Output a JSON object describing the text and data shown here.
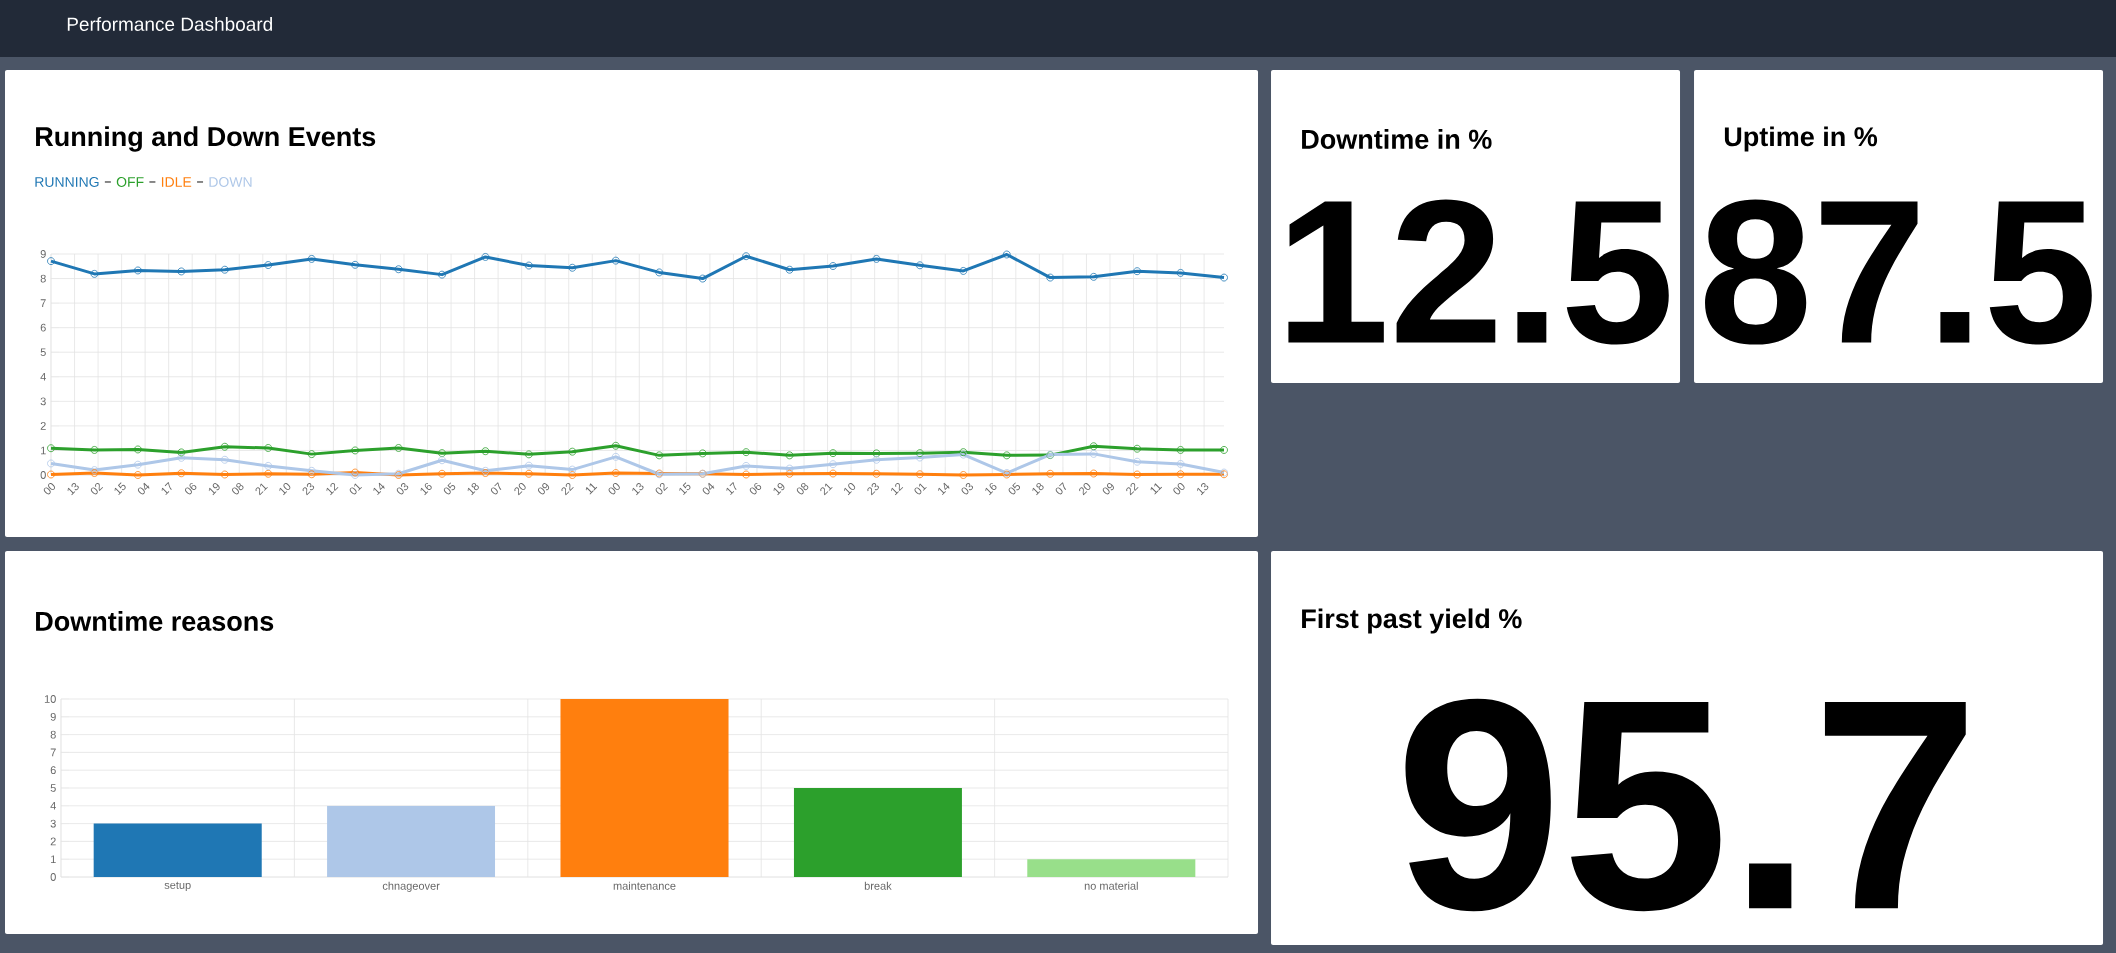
{
  "chart_data": [
    {
      "type": "other",
      "title": "Performance Dashboard"
    },
    {
      "type": "line",
      "title": "Running and Down Events",
      "marker": "circle",
      "grid": true,
      "legend": "top left",
      "x": [
        0,
        24,
        48,
        72,
        96,
        120,
        144,
        168,
        192,
        216,
        240,
        264,
        288,
        312,
        336,
        360,
        384,
        408,
        432,
        456,
        480,
        504,
        528,
        552,
        576,
        600,
        624,
        648
      ],
      "xlim": [
        0,
        648
      ],
      "ylim": [
        0,
        9
      ],
      "yticks": [
        0,
        1,
        2,
        3,
        4,
        5,
        6,
        7,
        8,
        9
      ],
      "xticks": [
        {
          "value": 0,
          "label": "00"
        },
        {
          "value": 13,
          "label": "13"
        },
        {
          "value": 26,
          "label": "02"
        },
        {
          "value": 39,
          "label": "15"
        },
        {
          "value": 52,
          "label": "04"
        },
        {
          "value": 65,
          "label": "17"
        },
        {
          "value": 78,
          "label": "06"
        },
        {
          "value": 91,
          "label": "19"
        },
        {
          "value": 104,
          "label": "08"
        },
        {
          "value": 117,
          "label": "21"
        },
        {
          "value": 130,
          "label": "10"
        },
        {
          "value": 143,
          "label": "23"
        },
        {
          "value": 156,
          "label": "12"
        },
        {
          "value": 169,
          "label": "01"
        },
        {
          "value": 182,
          "label": "14"
        },
        {
          "value": 195,
          "label": "03"
        },
        {
          "value": 208,
          "label": "16"
        },
        {
          "value": 221,
          "label": "05"
        },
        {
          "value": 234,
          "label": "18"
        },
        {
          "value": 247,
          "label": "07"
        },
        {
          "value": 260,
          "label": "20"
        },
        {
          "value": 273,
          "label": "09"
        },
        {
          "value": 286,
          "label": "22"
        },
        {
          "value": 299,
          "label": "11"
        },
        {
          "value": 312,
          "label": "00"
        },
        {
          "value": 325,
          "label": "13"
        },
        {
          "value": 338,
          "label": "02"
        },
        {
          "value": 351,
          "label": "15"
        },
        {
          "value": 364,
          "label": "04"
        },
        {
          "value": 377,
          "label": "17"
        },
        {
          "value": 390,
          "label": "06"
        },
        {
          "value": 403,
          "label": "19"
        },
        {
          "value": 416,
          "label": "08"
        },
        {
          "value": 429,
          "label": "21"
        },
        {
          "value": 442,
          "label": "10"
        },
        {
          "value": 455,
          "label": "23"
        },
        {
          "value": 468,
          "label": "12"
        },
        {
          "value": 481,
          "label": "01"
        },
        {
          "value": 494,
          "label": "14"
        },
        {
          "value": 507,
          "label": "03"
        },
        {
          "value": 520,
          "label": "16"
        },
        {
          "value": 533,
          "label": "05"
        },
        {
          "value": 546,
          "label": "18"
        },
        {
          "value": 559,
          "label": "07"
        },
        {
          "value": 572,
          "label": "20"
        },
        {
          "value": 585,
          "label": "09"
        },
        {
          "value": 598,
          "label": "22"
        },
        {
          "value": 611,
          "label": "11"
        },
        {
          "value": 624,
          "label": "00"
        },
        {
          "value": 637,
          "label": "13"
        }
      ],
      "series": [
        {
          "name": "RUNNING",
          "color": "#1f77b4",
          "values": [
            8.71,
            8.19,
            8.33,
            8.29,
            8.36,
            8.55,
            8.8,
            8.56,
            8.38,
            8.16,
            8.88,
            8.53,
            8.44,
            8.73,
            8.25,
            8.0,
            8.91,
            8.36,
            8.51,
            8.8,
            8.54,
            8.31,
            8.98,
            8.04,
            8.07,
            8.3,
            8.23,
            8.04
          ]
        },
        {
          "name": "OFF",
          "color": "#2ca02c",
          "values": [
            1.09,
            1.02,
            1.04,
            0.92,
            1.15,
            1.1,
            0.85,
            1.0,
            1.1,
            0.89,
            0.97,
            0.84,
            0.95,
            1.19,
            0.8,
            0.88,
            0.93,
            0.8,
            0.89,
            0.88,
            0.89,
            0.93,
            0.8,
            0.81,
            1.17,
            1.07,
            1.02,
            1.02
          ]
        },
        {
          "name": "IDLE",
          "color": "#ff7f0e",
          "values": [
            0.02,
            0.08,
            0.0,
            0.07,
            0.02,
            0.05,
            0.03,
            0.1,
            0.0,
            0.05,
            0.08,
            0.05,
            0.0,
            0.08,
            0.06,
            0.05,
            0.02,
            0.05,
            0.06,
            0.05,
            0.03,
            0.0,
            0.02,
            0.05,
            0.06,
            0.02,
            0.03,
            0.03
          ]
        },
        {
          "name": "DOWN",
          "color": "#aec7e8",
          "values": [
            0.47,
            0.2,
            0.42,
            0.7,
            0.62,
            0.37,
            0.17,
            0.0,
            0.05,
            0.6,
            0.17,
            0.38,
            0.22,
            0.74,
            0.03,
            0.05,
            0.37,
            0.26,
            0.44,
            0.62,
            0.71,
            0.83,
            0.08,
            0.83,
            0.86,
            0.54,
            0.45,
            0.1
          ]
        }
      ]
    },
    {
      "type": "other",
      "title": "Downtime in %",
      "annotations": [
        "12.5"
      ]
    },
    {
      "type": "other",
      "title": "Uptime in %",
      "annotations": [
        "87.5"
      ]
    },
    {
      "type": "bar",
      "title": "Downtime reasons",
      "grid": true,
      "categories": [
        "setup",
        "chnageover",
        "maintenance",
        "break",
        "no material"
      ],
      "values": [
        3,
        4,
        10,
        5,
        1
      ],
      "colors": [
        "#1f77b4",
        "#aec7e8",
        "#ff7f0e",
        "#2ca02c",
        "#98df8a"
      ],
      "ylim": [
        0,
        10
      ],
      "yticks": [
        0,
        1,
        2,
        3,
        4,
        5,
        6,
        7,
        8,
        9,
        10
      ]
    },
    {
      "type": "other",
      "title": "First past yield %",
      "annotations": [
        "95.7"
      ]
    }
  ]
}
